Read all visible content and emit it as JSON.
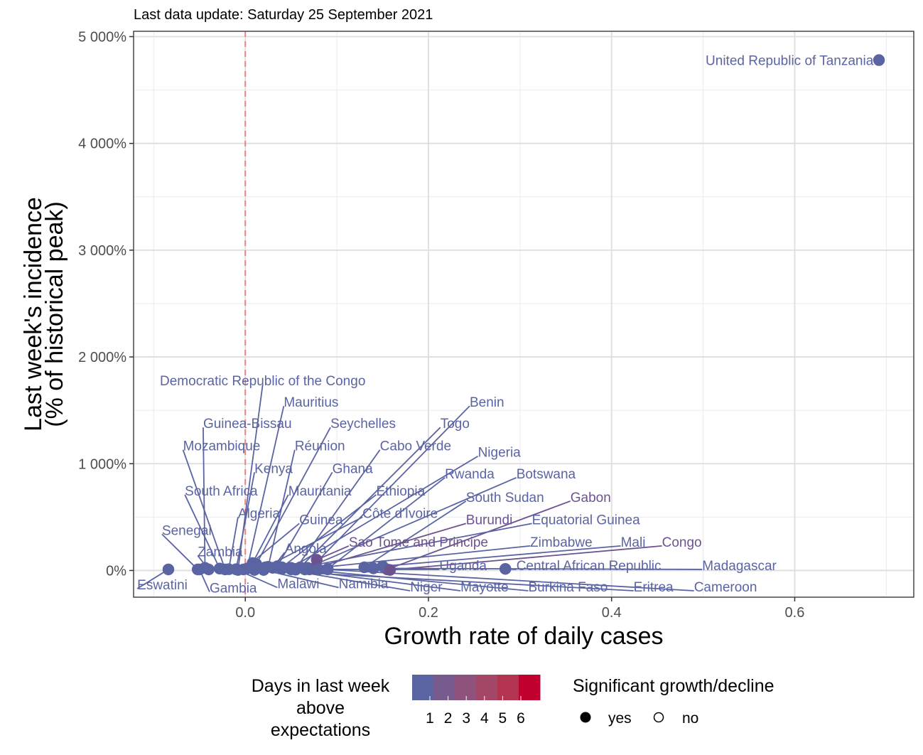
{
  "chart_data": {
    "type": "scatter",
    "subtitle": "Last data update: Saturday 25 September 2021",
    "xlabel": "Growth rate of daily cases",
    "ylabel_line1": "Last week's incidence",
    "ylabel_line2": "(% of historical peak)",
    "xlim": [
      -0.122,
      0.73
    ],
    "ylim": [
      -250,
      5050
    ],
    "x_ticks": [
      0.0,
      0.2,
      0.4,
      0.6
    ],
    "x_tick_labels": [
      "0.0",
      "0.2",
      "0.4",
      "0.6"
    ],
    "y_ticks": [
      0,
      1000,
      2000,
      3000,
      4000,
      5000
    ],
    "y_tick_labels": [
      "0%",
      "1 000%",
      "2 000%",
      "3 000%",
      "4 000%",
      "5 000%"
    ],
    "reference_line_x": 0,
    "grid": true,
    "legend_position": "bottom",
    "colors": {
      "low": "#5b64a3",
      "mid": "#7d5a89",
      "high": "#c0002f",
      "reference_line": "#f08080"
    },
    "legend": {
      "color_title": [
        "Days in last week",
        "above",
        "expectations"
      ],
      "color_ticks": [
        "1",
        "2",
        "3",
        "4",
        "5",
        "6"
      ],
      "color_steps": [
        "#5b64a3",
        "#775b8f",
        "#8f527c",
        "#a34767",
        "#b23451",
        "#c0002f"
      ],
      "shape_title": "Significant growth/decline",
      "shape_items": [
        {
          "label": "yes",
          "filled": true
        },
        {
          "label": "no",
          "filled": false
        }
      ]
    },
    "points": [
      {
        "name": "United Republic of Tanzania",
        "x": 0.692,
        "y": 4780,
        "days": 0,
        "significant": true,
        "lx": 0.686,
        "ly": 4780,
        "anchor": "end"
      },
      {
        "name": "Democratic Republic of the Congo",
        "x": -0.008,
        "y": 5,
        "days": 0,
        "significant": true,
        "lx": 0.019,
        "ly": 1780,
        "anchor": "middle"
      },
      {
        "name": "Mauritius",
        "x": 0.002,
        "y": 18,
        "days": 0,
        "significant": true,
        "lx": 0.042,
        "ly": 1580,
        "anchor": "start"
      },
      {
        "name": "Guinea-Bissau",
        "x": -0.044,
        "y": 25,
        "days": 0,
        "significant": true,
        "lx": -0.046,
        "ly": 1380,
        "anchor": "start"
      },
      {
        "name": "Seychelles",
        "x": 0.012,
        "y": 60,
        "days": 0,
        "significant": true,
        "lx": 0.093,
        "ly": 1380,
        "anchor": "start"
      },
      {
        "name": "Benin",
        "x": 0.07,
        "y": 10,
        "days": 0,
        "significant": true,
        "lx": 0.245,
        "ly": 1580,
        "anchor": "start"
      },
      {
        "name": "Togo",
        "x": 0.06,
        "y": 30,
        "days": 0,
        "significant": true,
        "lx": 0.213,
        "ly": 1380,
        "anchor": "start"
      },
      {
        "name": "Mozambique",
        "x": -0.022,
        "y": 10,
        "days": 0,
        "significant": true,
        "lx": -0.068,
        "ly": 1170,
        "anchor": "start"
      },
      {
        "name": "Réunion",
        "x": 0.025,
        "y": 35,
        "days": 0,
        "significant": true,
        "lx": 0.054,
        "ly": 1170,
        "anchor": "start"
      },
      {
        "name": "Cabo Verde",
        "x": 0.055,
        "y": 15,
        "days": 0,
        "significant": true,
        "lx": 0.147,
        "ly": 1170,
        "anchor": "start"
      },
      {
        "name": "Nigeria",
        "x": 0.05,
        "y": 25,
        "days": 0,
        "significant": true,
        "lx": 0.254,
        "ly": 1110,
        "anchor": "start"
      },
      {
        "name": "Kenya",
        "x": -0.01,
        "y": 12,
        "days": 0,
        "significant": true,
        "lx": 0.01,
        "ly": 960,
        "anchor": "start"
      },
      {
        "name": "Ghana",
        "x": 0.035,
        "y": 40,
        "days": 0,
        "significant": true,
        "lx": 0.095,
        "ly": 960,
        "anchor": "start"
      },
      {
        "name": "Rwanda",
        "x": 0.09,
        "y": 15,
        "days": 0,
        "significant": true,
        "lx": 0.218,
        "ly": 910,
        "anchor": "start"
      },
      {
        "name": "Botswana",
        "x": 0.068,
        "y": 25,
        "days": 0,
        "significant": true,
        "lx": 0.296,
        "ly": 910,
        "anchor": "start"
      },
      {
        "name": "South Africa",
        "x": -0.028,
        "y": 18,
        "days": 0,
        "significant": true,
        "lx": -0.066,
        "ly": 750,
        "anchor": "start"
      },
      {
        "name": "Mauritania",
        "x": 0.008,
        "y": 70,
        "days": 0,
        "significant": true,
        "lx": 0.047,
        "ly": 750,
        "anchor": "start"
      },
      {
        "name": "Ethiopia",
        "x": 0.04,
        "y": 30,
        "days": 0,
        "significant": true,
        "lx": 0.143,
        "ly": 750,
        "anchor": "start"
      },
      {
        "name": "South Sudan",
        "x": 0.13,
        "y": 30,
        "days": 0,
        "significant": true,
        "lx": 0.241,
        "ly": 690,
        "anchor": "start"
      },
      {
        "name": "Gabon",
        "x": 0.155,
        "y": 10,
        "days": 1,
        "significant": true,
        "lx": 0.355,
        "ly": 690,
        "anchor": "start"
      },
      {
        "name": "Algeria",
        "x": -0.018,
        "y": 12,
        "days": 0,
        "significant": true,
        "lx": -0.008,
        "ly": 540,
        "anchor": "start"
      },
      {
        "name": "Guinea",
        "x": -0.002,
        "y": 10,
        "days": 0,
        "significant": true,
        "lx": 0.059,
        "ly": 480,
        "anchor": "start"
      },
      {
        "name": "Côte d'Ivoire",
        "x": 0.022,
        "y": 30,
        "days": 0,
        "significant": true,
        "lx": 0.128,
        "ly": 540,
        "anchor": "start"
      },
      {
        "name": "Burundi",
        "x": 0.075,
        "y": 20,
        "days": 1,
        "significant": true,
        "lx": 0.241,
        "ly": 480,
        "anchor": "start"
      },
      {
        "name": "Equatorial Guinea",
        "x": 0.05,
        "y": 10,
        "days": 0,
        "significant": true,
        "lx": 0.313,
        "ly": 480,
        "anchor": "start"
      },
      {
        "name": "Senegal",
        "x": -0.052,
        "y": 10,
        "days": 0,
        "significant": true,
        "lx": -0.091,
        "ly": 380,
        "anchor": "start"
      },
      {
        "name": "Zambia",
        "x": -0.04,
        "y": 10,
        "days": 0,
        "significant": true,
        "lx": -0.052,
        "ly": 180,
        "anchor": "start"
      },
      {
        "name": "Angola",
        "x": 0.03,
        "y": 25,
        "days": 0,
        "significant": true,
        "lx": 0.043,
        "ly": 210,
        "anchor": "start"
      },
      {
        "name": "Sao Tome and Principe",
        "x": 0.078,
        "y": 100,
        "days": 1,
        "significant": true,
        "lx": 0.113,
        "ly": 270,
        "anchor": "start"
      },
      {
        "name": "Zimbabwe",
        "x": 0.068,
        "y": 15,
        "days": 0,
        "significant": true,
        "lx": 0.311,
        "ly": 270,
        "anchor": "start"
      },
      {
        "name": "Mali",
        "x": 0.15,
        "y": 40,
        "days": 0,
        "significant": true,
        "lx": 0.41,
        "ly": 270,
        "anchor": "start"
      },
      {
        "name": "Congo",
        "x": 0.158,
        "y": 5,
        "days": 1,
        "significant": true,
        "lx": 0.455,
        "ly": 270,
        "anchor": "start"
      },
      {
        "name": "Uganda",
        "x": 0.08,
        "y": 10,
        "days": 0,
        "significant": true,
        "lx": 0.212,
        "ly": 50,
        "anchor": "start"
      },
      {
        "name": "Central African Republic",
        "x": 0.284,
        "y": 15,
        "days": 0,
        "significant": true,
        "lx": 0.296,
        "ly": 50,
        "anchor": "start"
      },
      {
        "name": "Madagascar",
        "x": 0.14,
        "y": 20,
        "days": 0,
        "significant": true,
        "lx": 0.499,
        "ly": 50,
        "anchor": "start"
      },
      {
        "name": "Eswatini",
        "x": -0.084,
        "y": 10,
        "days": 0,
        "significant": true,
        "lx": -0.118,
        "ly": -130,
        "anchor": "start"
      },
      {
        "name": "Gambia",
        "x": -0.05,
        "y": 10,
        "days": 0,
        "significant": true,
        "lx": -0.039,
        "ly": -160,
        "anchor": "start"
      },
      {
        "name": "Malawi",
        "x": -0.01,
        "y": 10,
        "days": 0,
        "significant": true,
        "lx": 0.035,
        "ly": -120,
        "anchor": "start"
      },
      {
        "name": "Namibia",
        "x": 0.02,
        "y": 5,
        "days": 0,
        "significant": true,
        "lx": 0.102,
        "ly": -120,
        "anchor": "start"
      },
      {
        "name": "Niger",
        "x": 0.04,
        "y": 15,
        "days": 0,
        "significant": true,
        "lx": 0.18,
        "ly": -150,
        "anchor": "start"
      },
      {
        "name": "Mayotte",
        "x": 0.055,
        "y": 8,
        "days": 0,
        "significant": true,
        "lx": 0.235,
        "ly": -150,
        "anchor": "start"
      },
      {
        "name": "Burkina Faso",
        "x": 0.065,
        "y": 10,
        "days": 0,
        "significant": true,
        "lx": 0.309,
        "ly": -150,
        "anchor": "start"
      },
      {
        "name": "Eritrea",
        "x": 0.01,
        "y": 5,
        "days": 0,
        "significant": true,
        "lx": 0.424,
        "ly": -150,
        "anchor": "start"
      },
      {
        "name": "Cameroon",
        "x": 0.09,
        "y": 10,
        "days": 0,
        "significant": true,
        "lx": 0.49,
        "ly": -150,
        "anchor": "start"
      }
    ]
  }
}
